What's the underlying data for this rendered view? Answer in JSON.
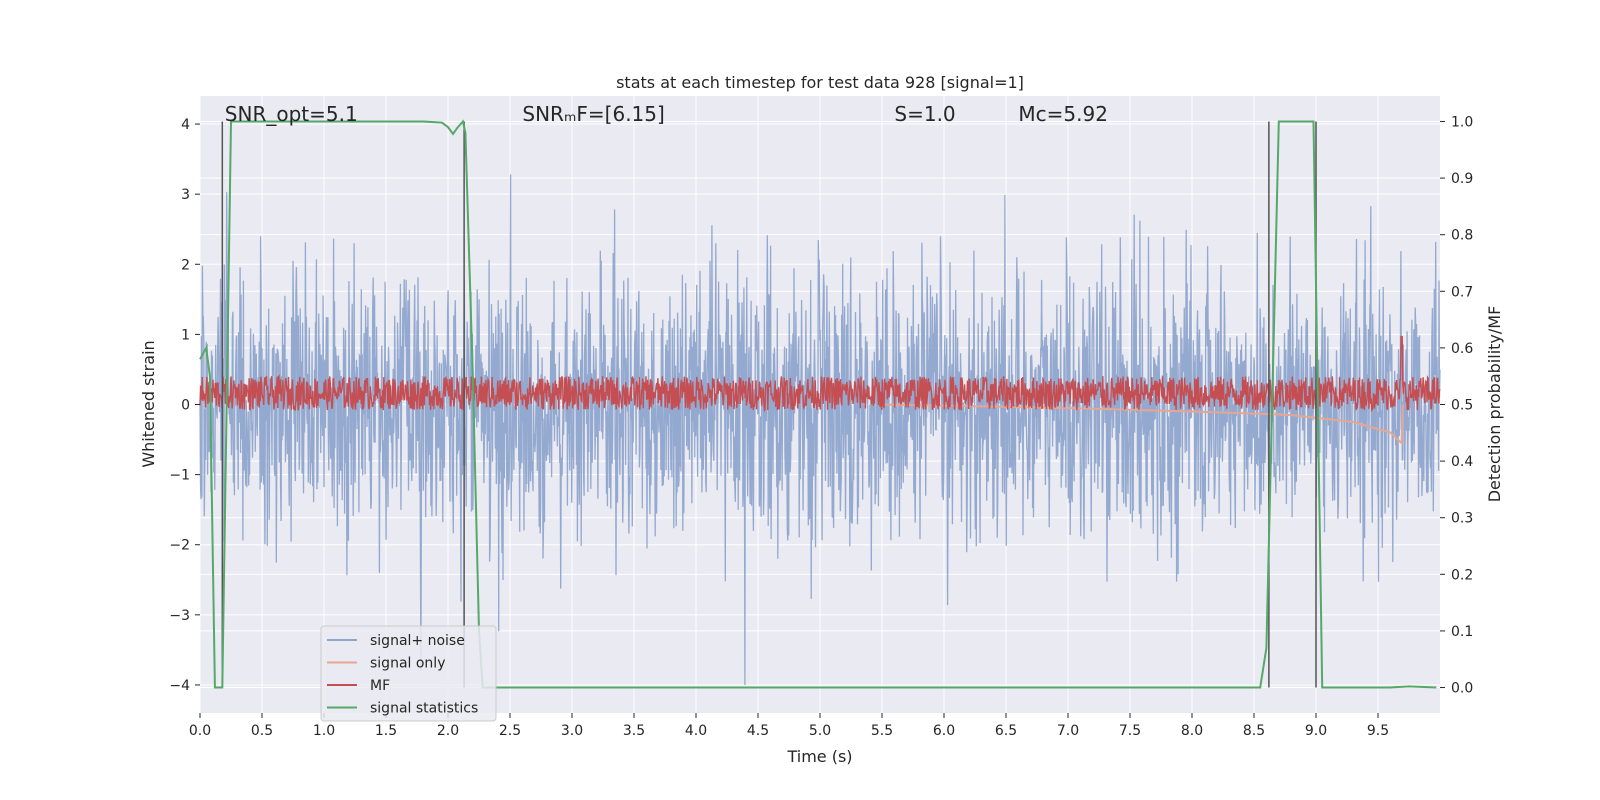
{
  "chart_data": {
    "type": "line",
    "title": "stats at each timestep for test data 928 [signal=1]",
    "xlabel": "Time (s)",
    "ylabel": "Whitened strain",
    "y2label": "Detection probability/MF",
    "xlim": [
      0.0,
      10.0
    ],
    "ylim": [
      -4.4,
      4.4
    ],
    "y2lim": [
      -0.045,
      1.045
    ],
    "x_ticks": [
      "0.0",
      "0.5",
      "1.0",
      "1.5",
      "2.0",
      "2.5",
      "3.0",
      "3.5",
      "4.0",
      "4.5",
      "5.0",
      "5.5",
      "6.0",
      "6.5",
      "7.0",
      "7.5",
      "8.0",
      "8.5",
      "9.0",
      "9.5"
    ],
    "y_ticks": [
      "−4",
      "−3",
      "−2",
      "−1",
      "0",
      "1",
      "2",
      "3",
      "4"
    ],
    "y2_ticks": [
      "0.0",
      "0.1",
      "0.2",
      "0.3",
      "0.4",
      "0.5",
      "0.6",
      "0.7",
      "0.8",
      "0.9",
      "1.0"
    ],
    "grid": true,
    "legend_position": "lower-left",
    "annotations": [
      {
        "text": "SNR_opt=5.1",
        "x": 0.2,
        "y": 4.1
      },
      {
        "text": "SNRₘF=[6.15]",
        "x": 2.6,
        "y": 4.1
      },
      {
        "text": "S=1.0",
        "x": 5.6,
        "y": 4.1
      },
      {
        "text": "Mc=5.92",
        "x": 6.6,
        "y": 4.1
      }
    ],
    "vertical_lines_x": [
      0.18,
      2.13,
      8.62,
      9.0
    ],
    "series": [
      {
        "name": "signal+ noise",
        "color": "#8fa5cc",
        "axis": "left",
        "envelope": {
          "typical_upper": 2.0,
          "typical_lower": -2.0,
          "max": 4.0,
          "min": -4.0
        }
      },
      {
        "name": "signal only",
        "color": "#e8a590",
        "axis": "left",
        "points": [
          [
            5.5,
            0.0
          ],
          [
            7.0,
            -0.05
          ],
          [
            8.0,
            -0.1
          ],
          [
            8.8,
            -0.15
          ],
          [
            9.3,
            -0.25
          ],
          [
            9.6,
            -0.4
          ],
          [
            9.69,
            -0.55
          ],
          [
            9.7,
            0.0
          ]
        ]
      },
      {
        "name": "MF",
        "color": "#c44e52",
        "axis": "right",
        "baseline": 0.52,
        "band": 0.03,
        "peak": {
          "x": 9.69,
          "y": 0.62
        }
      },
      {
        "name": "signal statistics",
        "color": "#55a868",
        "axis": "right",
        "points": [
          [
            0.0,
            0.58
          ],
          [
            0.05,
            0.6
          ],
          [
            0.08,
            0.55
          ],
          [
            0.12,
            0.0
          ],
          [
            0.18,
            0.0
          ],
          [
            0.25,
            1.0
          ],
          [
            0.5,
            1.0
          ],
          [
            1.8,
            1.0
          ],
          [
            1.95,
            0.998
          ],
          [
            2.0,
            0.99
          ],
          [
            2.04,
            0.978
          ],
          [
            2.08,
            0.99
          ],
          [
            2.12,
            1.0
          ],
          [
            2.14,
            0.98
          ],
          [
            2.2,
            0.55
          ],
          [
            2.25,
            0.1
          ],
          [
            2.28,
            0.0
          ],
          [
            4.0,
            0.0
          ],
          [
            6.0,
            0.0
          ],
          [
            8.55,
            0.0
          ],
          [
            8.6,
            0.07
          ],
          [
            8.7,
            1.0
          ],
          [
            8.98,
            1.0
          ],
          [
            9.05,
            0.0
          ],
          [
            9.6,
            0.0
          ],
          [
            9.75,
            0.002
          ],
          [
            9.97,
            0.0
          ]
        ]
      }
    ]
  }
}
